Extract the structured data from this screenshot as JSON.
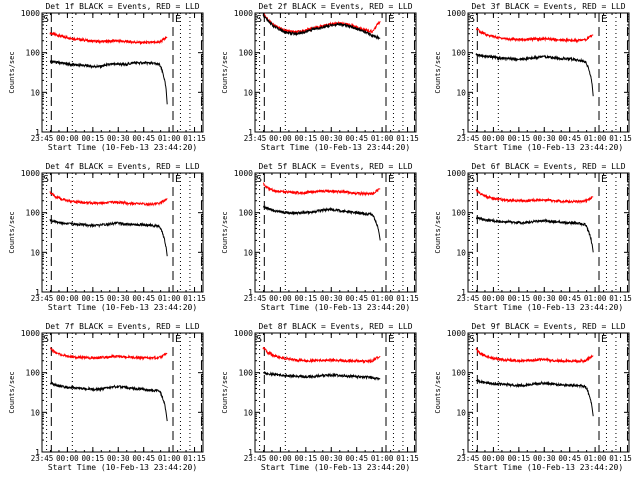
{
  "chart_data": {
    "type": "line",
    "layout": "3x3 grid",
    "colors": {
      "events": "#000000",
      "lld": "#ff0000",
      "axes": "#000000",
      "background": "#ffffff"
    },
    "shared": {
      "xlabel": "Start Time (10-Feb-13 23:44:20)",
      "ylabel": "Counts/sec",
      "xlim_min_after_start": [
        0.7,
        95.7
      ],
      "x_ticks": [
        {
          "label": "23:45",
          "min_after_start": 0.7
        },
        {
          "label": "00:00",
          "min_after_start": 15.7
        },
        {
          "label": "00:15",
          "min_after_start": 30.7
        },
        {
          "label": "00:30",
          "min_after_start": 45.7
        },
        {
          "label": "00:45",
          "min_after_start": 60.7
        },
        {
          "label": "01:00",
          "min_after_start": 75.7
        },
        {
          "label": "01:15",
          "min_after_start": 90.7
        }
      ],
      "y_scale": "log",
      "ylim": [
        1,
        1000
      ],
      "y_ticks": [
        {
          "label": "1",
          "value": 1
        },
        {
          "label": "10",
          "value": 10
        },
        {
          "label": "100",
          "value": 100
        },
        {
          "label": "1000",
          "value": 1000
        }
      ],
      "markers": {
        "start": "S",
        "end": "E"
      },
      "marker_lines_min": {
        "dotted": [
          3.4,
          18.6,
          82.4,
          88.0
        ],
        "dashed": [
          6.2,
          78.0,
          94.8
        ]
      },
      "x_min": [
        5.5,
        8,
        12,
        18,
        25,
        30,
        35,
        40,
        45,
        50,
        55,
        60,
        65,
        70,
        74.6
      ]
    },
    "panels": [
      {
        "title": "Det 1f BLACK = Events, RED = LLD",
        "series": [
          {
            "values": [
              310,
              290,
              260,
              230,
              210,
              195,
              190,
              195,
              200,
              190,
              185,
              180,
              180,
              185,
              240
            ]
          },
          {
            "values": [
              60,
              58,
              55,
              50,
              48,
              45,
              45,
              50,
              52,
              50,
              56,
              55,
              55,
              50,
              5
            ]
          }
        ]
      },
      {
        "title": "Det 2f BLACK = Events, RED = LLD",
        "series": [
          {
            "values": [
              1000,
              700,
              480,
              360,
              330,
              360,
              420,
              460,
              520,
              560,
              520,
              450,
              380,
              330,
              620
            ]
          },
          {
            "values": [
              900,
              650,
              450,
              330,
              300,
              330,
              390,
              430,
              480,
              520,
              480,
              410,
              340,
              270,
              230
            ]
          }
        ]
      },
      {
        "title": "Det 3f BLACK = Events, RED = LLD",
        "series": [
          {
            "values": [
              420,
              330,
              280,
              240,
              220,
              215,
              215,
              220,
              225,
              215,
              210,
              205,
              205,
              210,
              280
            ]
          },
          {
            "values": [
              90,
              85,
              80,
              75,
              70,
              68,
              70,
              75,
              80,
              75,
              72,
              70,
              65,
              60,
              8
            ]
          }
        ]
      },
      {
        "title": "Det 4f BLACK = Events, RED = LLD",
        "series": [
          {
            "values": [
              330,
              260,
              220,
              190,
              180,
              175,
              175,
              180,
              185,
              175,
              170,
              165,
              165,
              170,
              230
            ]
          },
          {
            "values": [
              65,
              60,
              55,
              52,
              50,
              48,
              48,
              52,
              55,
              52,
              50,
              50,
              48,
              45,
              8
            ]
          }
        ]
      },
      {
        "title": "Det 5f BLACK = Events, RED = LLD",
        "series": [
          {
            "values": [
              550,
              420,
              360,
              330,
              320,
              320,
              330,
              345,
              350,
              340,
              330,
              310,
              300,
              300,
              400
            ]
          },
          {
            "values": [
              150,
              125,
              110,
              100,
              98,
              100,
              105,
              115,
              120,
              115,
              105,
              100,
              95,
              90,
              20
            ]
          }
        ]
      },
      {
        "title": "Det 6f BLACK = Events, RED = LLD",
        "series": [
          {
            "values": [
              380,
              300,
              250,
              220,
              205,
              200,
              200,
              205,
              210,
              200,
              195,
              190,
              190,
              195,
              250
            ]
          },
          {
            "values": [
              75,
              70,
              65,
              60,
              58,
              56,
              56,
              60,
              62,
              60,
              58,
              56,
              54,
              50,
              10
            ]
          }
        ]
      },
      {
        "title": "Det 7f BLACK = Events, RED = LLD",
        "series": [
          {
            "values": [
              420,
              330,
              280,
              250,
              240,
              235,
              240,
              250,
              260,
              250,
              240,
              235,
              235,
              240,
              300
            ]
          },
          {
            "values": [
              55,
              50,
              45,
              42,
              40,
              38,
              38,
              42,
              45,
              42,
              40,
              38,
              36,
              35,
              6
            ]
          }
        ]
      },
      {
        "title": "Det 8f BLACK = Events, RED = LLD",
        "series": [
          {
            "values": [
              420,
              330,
              270,
              230,
              210,
              200,
              200,
              205,
              210,
              205,
              200,
              200,
              195,
              200,
              260
            ]
          },
          {
            "values": [
              100,
              95,
              90,
              85,
              82,
              80,
              80,
              85,
              88,
              85,
              82,
              80,
              78,
              75,
              70
            ]
          }
        ]
      },
      {
        "title": "Det 9f BLACK = Events, RED = LLD",
        "series": [
          {
            "values": [
              380,
              300,
              250,
              220,
              205,
              200,
              205,
              210,
              215,
              205,
              200,
              195,
              195,
              200,
              270
            ]
          },
          {
            "values": [
              65,
              60,
              56,
              52,
              50,
              48,
              48,
              52,
              55,
              52,
              50,
              48,
              48,
              45,
              8
            ]
          }
        ]
      }
    ]
  }
}
